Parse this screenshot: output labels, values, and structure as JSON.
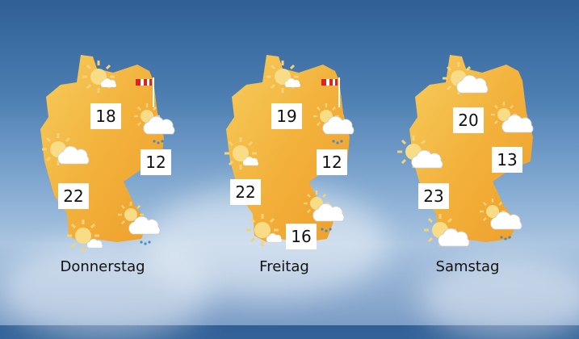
{
  "days": [
    {
      "label": "Donnerstag",
      "temps": [
        "18",
        "12",
        "22"
      ]
    },
    {
      "label": "Freitag",
      "temps": [
        "19",
        "12",
        "22",
        "16"
      ]
    },
    {
      "label": "Samstag",
      "temps": [
        "20",
        "13",
        "23"
      ]
    }
  ],
  "colors": {
    "map_warm": "#f2a72c",
    "map_light": "#f7cc5c",
    "sky": "#4d7fb3"
  }
}
